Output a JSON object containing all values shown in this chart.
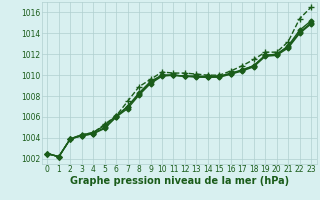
{
  "x_values": [
    0,
    1,
    2,
    3,
    4,
    5,
    6,
    7,
    8,
    9,
    10,
    11,
    12,
    13,
    14,
    15,
    16,
    17,
    18,
    19,
    20,
    21,
    22,
    23
  ],
  "series": [
    {
      "y": [
        1002.5,
        1002.2,
        1003.9,
        1004.3,
        1004.5,
        1005.3,
        1006.1,
        1007.5,
        1008.9,
        1009.6,
        1010.3,
        1010.2,
        1010.2,
        1010.1,
        1010.0,
        1010.0,
        1010.4,
        1010.9,
        1011.5,
        1012.2,
        1012.2,
        1013.2,
        1015.4,
        1016.5
      ],
      "linestyle": "--",
      "marker": "+",
      "linewidth": 1.0,
      "markersize": 4
    },
    {
      "y": [
        1002.5,
        1002.2,
        1003.9,
        1004.3,
        1004.5,
        1005.2,
        1006.1,
        1007.0,
        1008.3,
        1009.4,
        1010.0,
        1010.0,
        1009.9,
        1009.9,
        1009.9,
        1009.9,
        1010.2,
        1010.5,
        1010.9,
        1011.9,
        1012.0,
        1012.8,
        1014.3,
        1015.2
      ],
      "linestyle": "-",
      "marker": "D",
      "linewidth": 1.0,
      "markersize": 2.5
    },
    {
      "y": [
        1002.5,
        1002.2,
        1003.9,
        1004.2,
        1004.4,
        1004.9,
        1006.0,
        1006.8,
        1008.1,
        1009.2,
        1009.9,
        1010.0,
        1009.9,
        1009.8,
        1009.8,
        1009.8,
        1010.1,
        1010.4,
        1010.8,
        1011.8,
        1011.9,
        1012.6,
        1014.0,
        1014.9
      ],
      "linestyle": "-",
      "marker": "D",
      "linewidth": 1.0,
      "markersize": 2.5
    },
    {
      "y": [
        1002.5,
        1002.2,
        1003.9,
        1004.2,
        1004.4,
        1005.0,
        1006.0,
        1007.0,
        1008.2,
        1009.3,
        1010.0,
        1010.0,
        1009.9,
        1009.9,
        1009.8,
        1009.9,
        1010.1,
        1010.5,
        1010.9,
        1011.9,
        1012.0,
        1012.7,
        1014.1,
        1015.0
      ],
      "linestyle": "-",
      "marker": "D",
      "linewidth": 1.0,
      "markersize": 2.5
    }
  ],
  "line_color": "#1a5c1a",
  "bg_color": "#d8f0f0",
  "grid_color": "#b0d0d0",
  "label_color": "#1a5c1a",
  "ylim": [
    1001.5,
    1017.0
  ],
  "yticks": [
    1002,
    1004,
    1006,
    1008,
    1010,
    1012,
    1014,
    1016
  ],
  "xticks": [
    0,
    1,
    2,
    3,
    4,
    5,
    6,
    7,
    8,
    9,
    10,
    11,
    12,
    13,
    14,
    15,
    16,
    17,
    18,
    19,
    20,
    21,
    22,
    23
  ],
  "xlabel": "Graphe pression niveau de la mer (hPa)",
  "xlabel_fontsize": 7.0,
  "tick_fontsize": 5.5
}
